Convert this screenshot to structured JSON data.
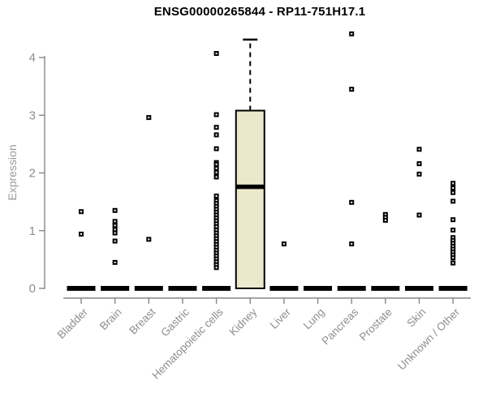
{
  "title": "ENSG00000265844 - RP11-751H17.1",
  "chart_data": {
    "type": "boxplot",
    "title": "ENSG00000265844 - RP11-751H17.1",
    "xlabel": "",
    "ylabel": "Expression",
    "ylim": [
      0,
      4.45
    ],
    "yticks": [
      0,
      1,
      2,
      3,
      4
    ],
    "grid": false,
    "legend": "none",
    "categories": [
      "Bladder",
      "Brain",
      "Breast",
      "Gastric",
      "Hematopoietic cells",
      "Kidney",
      "Liver",
      "Lung",
      "Pancreas",
      "Prostate",
      "Skin",
      "Unknown / Other"
    ],
    "boxes": [
      {
        "category": "Bladder",
        "q1": 0,
        "median": 0,
        "q3": 0,
        "whisker_low": 0,
        "whisker_high": 0,
        "outliers": [
          1.33,
          0.94
        ]
      },
      {
        "category": "Brain",
        "q1": 0,
        "median": 0,
        "q3": 0,
        "whisker_low": 0,
        "whisker_high": 0,
        "outliers": [
          1.35,
          1.16,
          1.09,
          1.02,
          0.96,
          0.82,
          0.45
        ]
      },
      {
        "category": "Breast",
        "q1": 0,
        "median": 0,
        "q3": 0,
        "whisker_low": 0,
        "whisker_high": 0,
        "outliers": [
          2.96,
          0.85
        ]
      },
      {
        "category": "Gastric",
        "q1": 0,
        "median": 0,
        "q3": 0,
        "whisker_low": 0,
        "whisker_high": 0,
        "outliers": []
      },
      {
        "category": "Hematopoietic cells",
        "q1": 0,
        "median": 0,
        "q3": 0,
        "whisker_low": 0,
        "whisker_high": 0,
        "outliers": [
          4.07,
          3.01,
          2.79,
          2.66,
          2.42,
          2.18,
          2.15,
          2.08,
          2.01,
          1.93,
          1.6,
          1.52,
          1.47,
          1.42,
          1.37,
          1.32,
          1.27,
          1.22,
          1.17,
          1.12,
          1.07,
          1.01,
          0.96,
          0.91,
          0.86,
          0.81,
          0.76,
          0.71,
          0.66,
          0.61,
          0.56,
          0.51,
          0.46,
          0.41,
          0.36
        ]
      },
      {
        "category": "Kidney",
        "q1": 0,
        "median": 1.76,
        "q3": 3.08,
        "whisker_low": 0,
        "whisker_high": 4.31,
        "outliers": []
      },
      {
        "category": "Liver",
        "q1": 0,
        "median": 0,
        "q3": 0,
        "whisker_low": 0,
        "whisker_high": 0,
        "outliers": [
          0.77
        ]
      },
      {
        "category": "Lung",
        "q1": 0,
        "median": 0,
        "q3": 0,
        "whisker_low": 0,
        "whisker_high": 0,
        "outliers": []
      },
      {
        "category": "Pancreas",
        "q1": 0,
        "median": 0,
        "q3": 0,
        "whisker_low": 0,
        "whisker_high": 0,
        "outliers": [
          4.41,
          3.45,
          1.49,
          0.77
        ]
      },
      {
        "category": "Prostate",
        "q1": 0,
        "median": 0,
        "q3": 0,
        "whisker_low": 0,
        "whisker_high": 0,
        "outliers": [
          1.28,
          1.23,
          1.18
        ]
      },
      {
        "category": "Skin",
        "q1": 0,
        "median": 0,
        "q3": 0,
        "whisker_low": 0,
        "whisker_high": 0,
        "outliers": [
          2.41,
          2.16,
          1.98,
          1.27
        ]
      },
      {
        "category": "Unknown / Other",
        "q1": 0,
        "median": 0,
        "q3": 0,
        "whisker_low": 0,
        "whisker_high": 0,
        "outliers": [
          1.82,
          1.74,
          1.66,
          1.51,
          1.19,
          1.01,
          0.88,
          0.83,
          0.78,
          0.73,
          0.68,
          0.63,
          0.58,
          0.53,
          0.44
        ]
      }
    ],
    "colors": {
      "box_fill": "#ece8cd",
      "box_stroke": "#000000",
      "median": "#000000",
      "outlier": "#000000",
      "axis_line": "#878787",
      "axis_text": "#8e8e8e",
      "title_text": "#000000",
      "background": "#ffffff"
    }
  }
}
